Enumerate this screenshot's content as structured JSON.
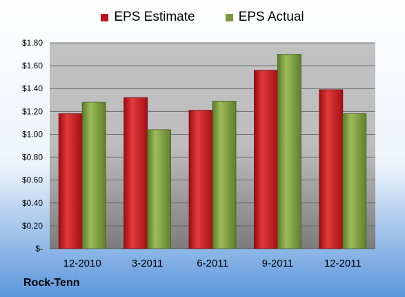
{
  "chart_data": {
    "type": "bar",
    "categories": [
      "12-2010",
      "3-2011",
      "6-2011",
      "9-2011",
      "12-2011"
    ],
    "series": [
      {
        "name": "EPS Estimate",
        "values": [
          1.18,
          1.32,
          1.21,
          1.56,
          1.39
        ],
        "color": "#c0141c"
      },
      {
        "name": "EPS Actual",
        "values": [
          1.28,
          1.04,
          1.29,
          1.7,
          1.18
        ],
        "color": "#7a9a3c"
      }
    ],
    "ylim": [
      0,
      1.8
    ],
    "yticks": [
      {
        "value": 0,
        "label": "$-"
      },
      {
        "value": 0.2,
        "label": "$0.20"
      },
      {
        "value": 0.4,
        "label": "$0.40"
      },
      {
        "value": 0.6,
        "label": "$0.60"
      },
      {
        "value": 0.8,
        "label": "$0.80"
      },
      {
        "value": 1.0,
        "label": "$1.00"
      },
      {
        "value": 1.2,
        "label": "$1.20"
      },
      {
        "value": 1.4,
        "label": "$1.40"
      },
      {
        "value": 1.6,
        "label": "$1.60"
      },
      {
        "value": 1.8,
        "label": "$1.80"
      }
    ],
    "grid": true,
    "legend_position": "top-center"
  },
  "legend": {
    "estimate_label": "EPS Estimate",
    "actual_label": "EPS Actual"
  },
  "company": "Rock-Tenn",
  "colors": {
    "estimate": "#c0141c",
    "actual": "#7a9a3c",
    "background_top": "#ffffff",
    "background_bottom": "#5a96dc"
  }
}
